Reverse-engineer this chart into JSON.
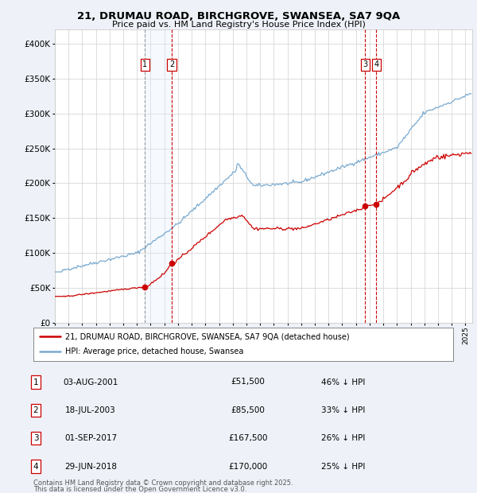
{
  "title1": "21, DRUMAU ROAD, BIRCHGROVE, SWANSEA, SA7 9QA",
  "title2": "Price paid vs. HM Land Registry's House Price Index (HPI)",
  "legend_label_red": "21, DRUMAU ROAD, BIRCHGROVE, SWANSEA, SA7 9QA (detached house)",
  "legend_label_blue": "HPI: Average price, detached house, Swansea",
  "transactions": [
    {
      "num": 1,
      "date_label": "03-AUG-2001",
      "date_year": 2001.58,
      "price": 51500,
      "pct": "46% ↓ HPI"
    },
    {
      "num": 2,
      "date_label": "18-JUL-2003",
      "date_year": 2003.54,
      "price": 85500,
      "pct": "33% ↓ HPI"
    },
    {
      "num": 3,
      "date_label": "01-SEP-2017",
      "date_year": 2017.67,
      "price": 167500,
      "pct": "26% ↓ HPI"
    },
    {
      "num": 4,
      "date_label": "29-JUN-2018",
      "date_year": 2018.49,
      "price": 170000,
      "pct": "25% ↓ HPI"
    }
  ],
  "footnote1": "Contains HM Land Registry data © Crown copyright and database right 2025.",
  "footnote2": "This data is licensed under the Open Government Licence v3.0.",
  "ylim": [
    0,
    420000
  ],
  "xlim_start": 1995.0,
  "xlim_end": 2025.5,
  "bg_color": "#eef2f8",
  "plot_bg": "#ffffff",
  "red_color": "#cc0000",
  "blue_color": "#7aaad0",
  "shade_color": "#ddeeff"
}
